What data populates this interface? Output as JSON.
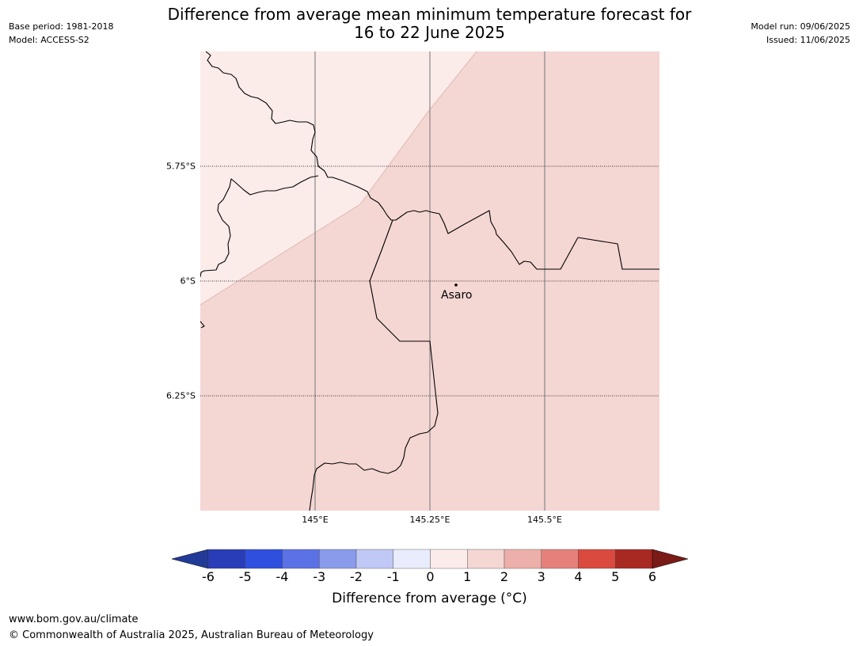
{
  "title": {
    "line1": "Difference from average mean minimum temperature forecast for",
    "line2": "16 to 22 June 2025"
  },
  "meta_left": {
    "base_period": "Base period: 1981-2018",
    "model": "Model: ACCESS-S2"
  },
  "meta_right": {
    "model_run": "Model run: 09/06/2025",
    "issued": "Issued: 11/06/2025"
  },
  "map": {
    "lat_labels": [
      "5.75°S",
      "6°S",
      "6.25°S"
    ],
    "lon_labels": [
      "145°E",
      "145.25°E",
      "145.5°E"
    ],
    "town": {
      "name": "Asaro"
    },
    "regions": [
      {
        "category": "0 to 1",
        "color": "#fbebe9"
      },
      {
        "category": "1 to 2",
        "color": "#f4d6d3"
      }
    ],
    "boundary_color": "#000000",
    "graticule_color": "#000000",
    "meridian_color": "#888888"
  },
  "colorbar": {
    "ticks": [
      "-6",
      "-5",
      "-4",
      "-3",
      "-2",
      "-1",
      "0",
      "1",
      "2",
      "3",
      "4",
      "5",
      "6"
    ],
    "colors": [
      "#223a97",
      "#2a3db8",
      "#2f4fdf",
      "#5b72e6",
      "#8a9bec",
      "#c0c8f6",
      "#e9ecfc",
      "#fbebe9",
      "#f4d6d3",
      "#edafa9",
      "#e5807a",
      "#da4a3e",
      "#a82822",
      "#7a1b18"
    ],
    "label": "Difference from average (°C)"
  },
  "footer": {
    "url": "www.bom.gov.au/climate",
    "copyright": "© Commonwealth of Australia 2025, Australian Bureau of Meteorology"
  }
}
